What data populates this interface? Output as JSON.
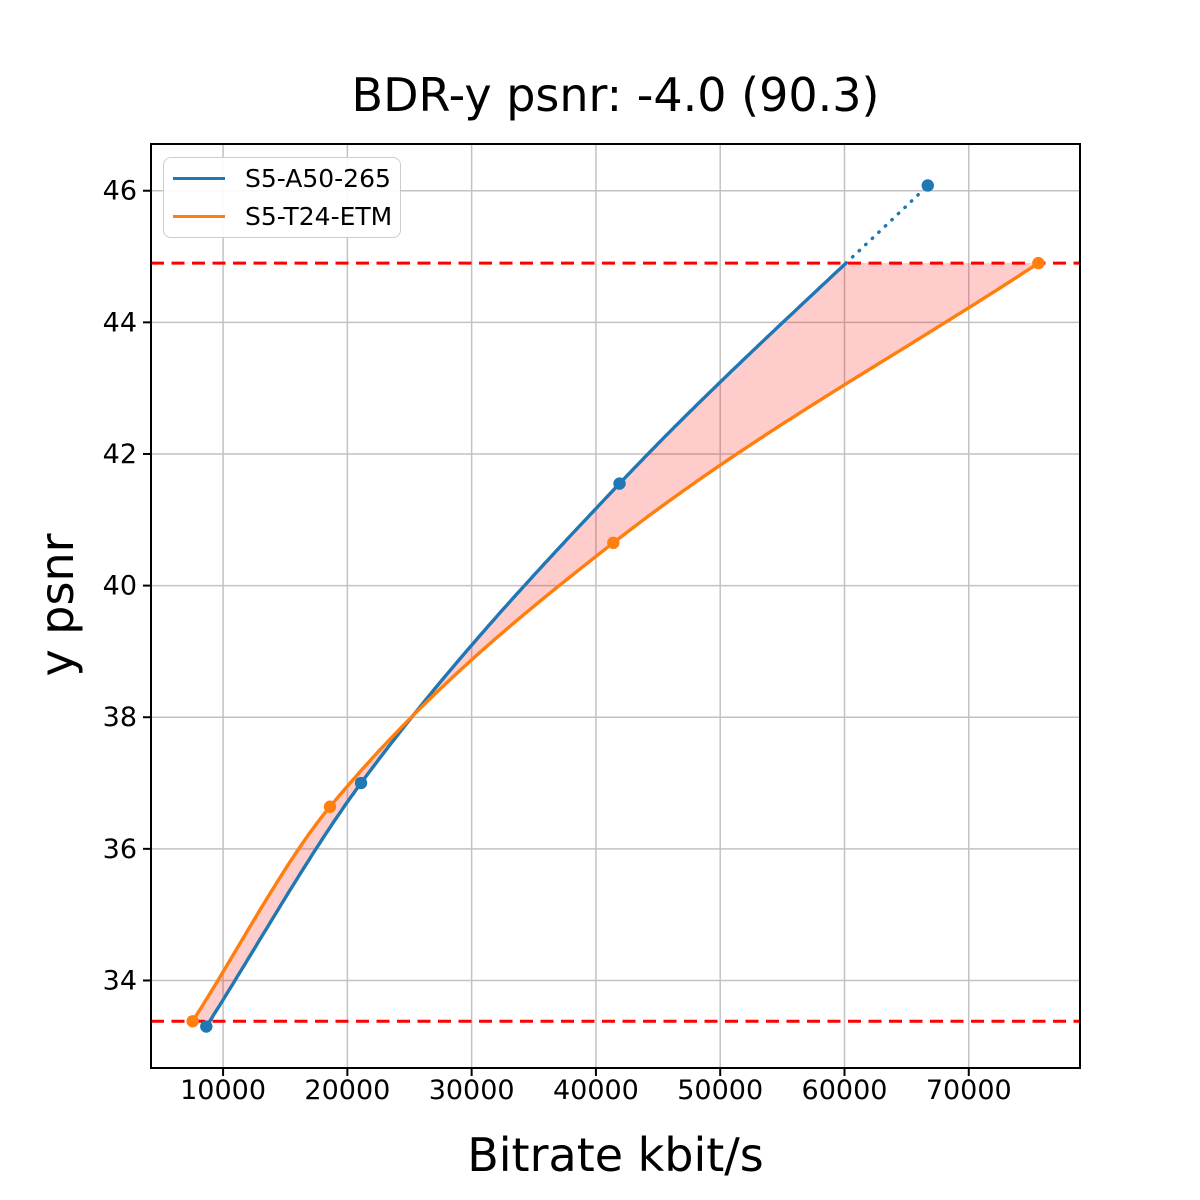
{
  "chart_data": {
    "type": "line",
    "title": "BDR-y psnr: -4.0 (90.3)",
    "xlabel": "Bitrate kbit/s",
    "ylabel": "y psnr",
    "grid": true,
    "legend_position": "upper left",
    "xlim": [
      4200,
      78950
    ],
    "ylim": [
      32.67,
      46.71
    ],
    "xticks": [
      10000,
      20000,
      30000,
      40000,
      50000,
      60000,
      70000
    ],
    "xtick_labels": [
      "10000",
      "20000",
      "30000",
      "40000",
      "50000",
      "60000",
      "70000"
    ],
    "yticks": [
      34,
      36,
      38,
      40,
      42,
      44,
      46
    ],
    "ytick_labels": [
      "34",
      "36",
      "38",
      "40",
      "42",
      "44",
      "46"
    ],
    "series": [
      {
        "name": "S5-A50-265",
        "color": "#1f77b4",
        "marker": "circle",
        "points": [
          [
            8650,
            33.3
          ],
          [
            21100,
            37.0
          ],
          [
            41900,
            41.55
          ],
          [
            66700,
            46.08
          ]
        ],
        "dotted_above_psnr": 44.9
      },
      {
        "name": "S5-T24-ETM",
        "color": "#ff7f0e",
        "marker": "circle",
        "points": [
          [
            7550,
            33.38
          ],
          [
            18600,
            36.64
          ],
          [
            41400,
            40.65
          ],
          [
            75600,
            44.9
          ]
        ]
      }
    ],
    "overlap_interval_lines": {
      "color": "#ff0000",
      "style": "dashed",
      "values": [
        33.38,
        44.9
      ]
    },
    "fill_between_series": {
      "color": "#ff0000",
      "opacity": 0.2,
      "psnr_range": [
        33.38,
        44.9
      ]
    }
  }
}
